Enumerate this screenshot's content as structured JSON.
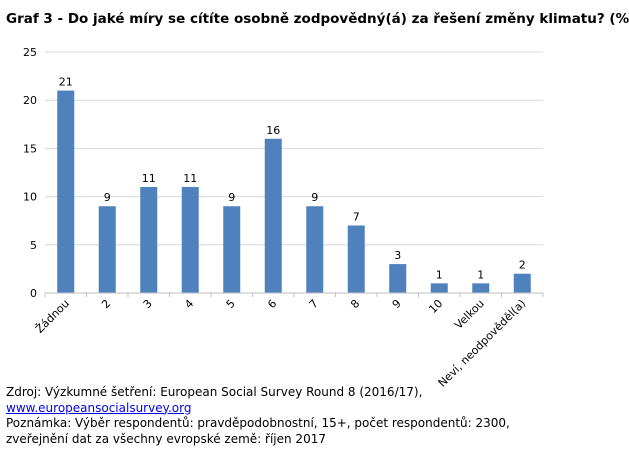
{
  "title": "Graf 3 - Do jaké míry se cítíte osobně zodpovědný(á) za řešení změny klimatu? (%",
  "chart_data": {
    "type": "bar",
    "categories": [
      "Žádnou",
      "2",
      "3",
      "4",
      "5",
      "6",
      "7",
      "8",
      "9",
      "10",
      "Velkou",
      "Neví, neodpověděl(a)"
    ],
    "values": [
      21,
      9,
      11,
      11,
      9,
      16,
      9,
      7,
      3,
      1,
      1,
      2
    ],
    "ylim": [
      0,
      25
    ],
    "yticks": [
      0,
      5,
      10,
      15,
      20,
      25
    ],
    "grid": true,
    "bar_color": "#4f81bd",
    "grid_color": "#d9d9d9"
  },
  "footer": {
    "source_prefix": "Zdroj: Výzkumné šetření: European Social Survey Round 8 (2016/17), ",
    "source_link": "www.europeansocialsurvey.org",
    "note": "Poznámka: Výběr respondentů: pravděpodobnostní, 15+, počet respondentů: 2300, zveřejnění dat za všechny evropské země: říjen 2017"
  }
}
